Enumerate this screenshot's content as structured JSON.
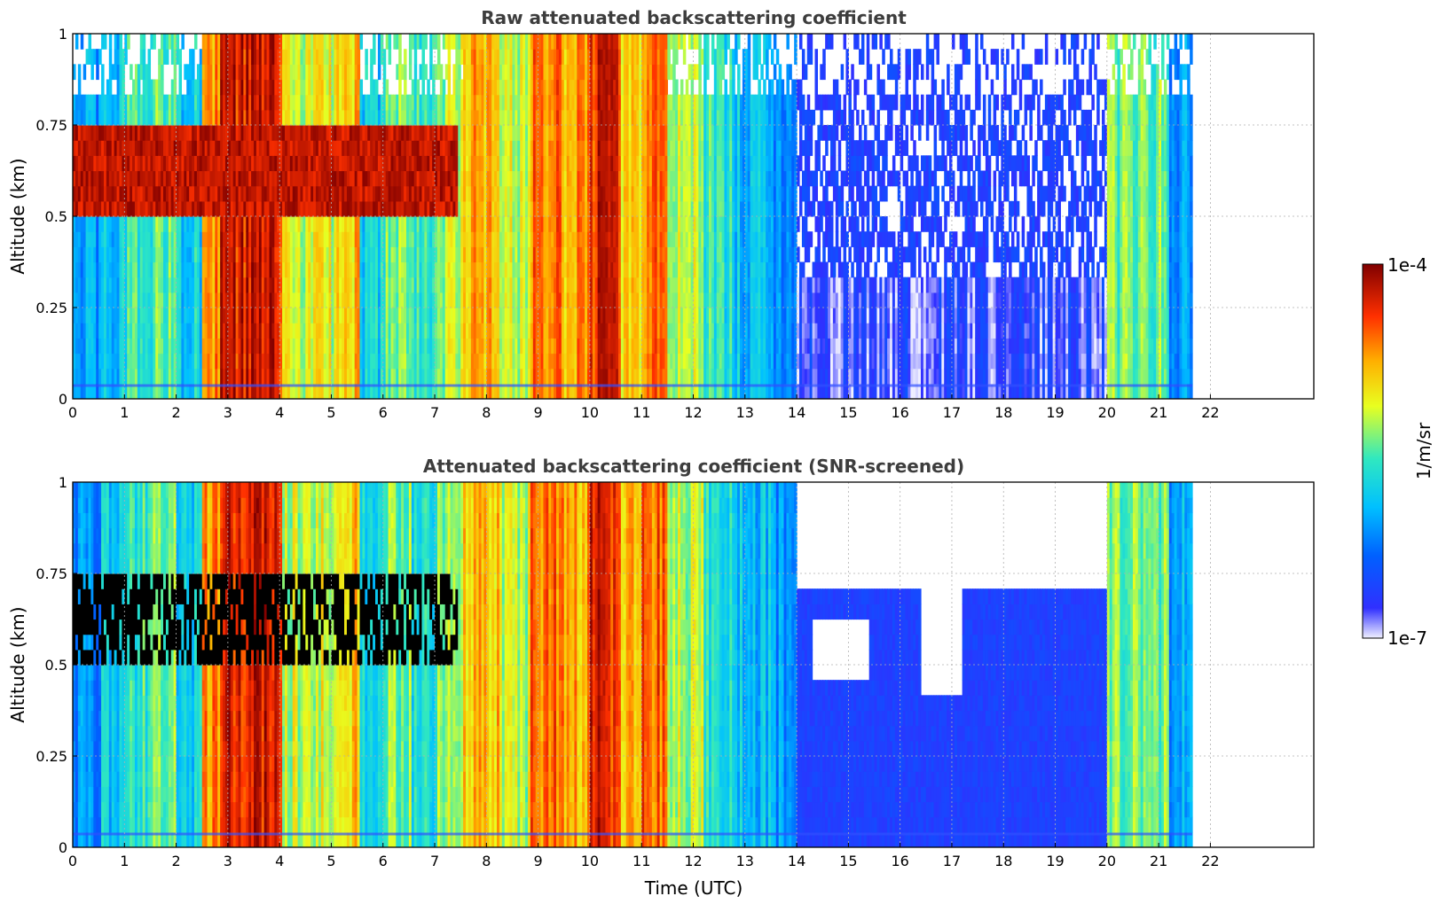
{
  "chart_data": [
    {
      "type": "heatmap",
      "title": "Raw attenuated backscattering coefficient",
      "ylabel": "Altitude (km)",
      "xlabel": "",
      "xlim": [
        0,
        24
      ],
      "ylim": [
        0,
        1
      ],
      "xticks": [
        "0",
        "1",
        "2",
        "3",
        "4",
        "5",
        "6",
        "7",
        "8",
        "9",
        "10",
        "11",
        "12",
        "13",
        "14",
        "15",
        "16",
        "17",
        "18",
        "19",
        "20",
        "21",
        "22"
      ],
      "yticks": [
        "0",
        "0.25",
        "0.5",
        "0.75",
        "1"
      ],
      "grid": true,
      "data_end_time": 21.65,
      "column_levels": [
        {
          "t0": 0.0,
          "t1": 0.5,
          "level": 0.3
        },
        {
          "t0": 0.5,
          "t1": 1.0,
          "level": 0.38
        },
        {
          "t0": 1.0,
          "t1": 1.5,
          "level": 0.46
        },
        {
          "t0": 1.5,
          "t1": 2.0,
          "level": 0.5
        },
        {
          "t0": 2.0,
          "t1": 2.45,
          "level": 0.4
        },
        {
          "t0": 2.45,
          "t1": 2.8,
          "level": 0.78
        },
        {
          "t0": 2.8,
          "t1": 4.0,
          "level": 0.9
        },
        {
          "t0": 4.0,
          "t1": 4.5,
          "level": 0.6
        },
        {
          "t0": 4.5,
          "t1": 5.0,
          "level": 0.62
        },
        {
          "t0": 5.0,
          "t1": 5.5,
          "level": 0.7
        },
        {
          "t0": 5.5,
          "t1": 6.0,
          "level": 0.4
        },
        {
          "t0": 6.0,
          "t1": 6.5,
          "level": 0.55
        },
        {
          "t0": 6.5,
          "t1": 7.0,
          "level": 0.45
        },
        {
          "t0": 7.0,
          "t1": 7.5,
          "level": 0.58
        },
        {
          "t0": 7.5,
          "t1": 8.2,
          "level": 0.72
        },
        {
          "t0": 8.2,
          "t1": 8.8,
          "level": 0.6
        },
        {
          "t0": 8.8,
          "t1": 9.5,
          "level": 0.8
        },
        {
          "t0": 9.5,
          "t1": 10.0,
          "level": 0.74
        },
        {
          "t0": 10.0,
          "t1": 10.6,
          "level": 0.88
        },
        {
          "t0": 10.6,
          "t1": 11.0,
          "level": 0.7
        },
        {
          "t0": 11.0,
          "t1": 11.5,
          "level": 0.82
        },
        {
          "t0": 11.5,
          "t1": 12.2,
          "level": 0.58
        },
        {
          "t0": 12.2,
          "t1": 12.8,
          "level": 0.45
        },
        {
          "t0": 12.8,
          "t1": 13.5,
          "level": 0.36
        },
        {
          "t0": 13.5,
          "t1": 14.0,
          "level": 0.3
        },
        {
          "t0": 14.0,
          "t1": 20.0,
          "level": 0.08
        },
        {
          "t0": 20.0,
          "t1": 21.2,
          "level": 0.52
        },
        {
          "t0": 21.2,
          "t1": 21.65,
          "level": 0.32
        }
      ],
      "cloud_layer": {
        "t0": 0.0,
        "t1": 7.4,
        "alt_bottom": 0.5,
        "alt_top": 0.75,
        "level": 0.99
      }
    },
    {
      "type": "heatmap",
      "title": "Attenuated backscattering coefficient (SNR-screened)",
      "ylabel": "Altitude (km)",
      "xlabel": "Time (UTC)",
      "xlim": [
        0,
        24
      ],
      "ylim": [
        0,
        1
      ],
      "xticks": [
        "0",
        "1",
        "2",
        "3",
        "4",
        "5",
        "6",
        "7",
        "8",
        "9",
        "10",
        "11",
        "12",
        "13",
        "14",
        "15",
        "16",
        "17",
        "18",
        "19",
        "20",
        "21",
        "22"
      ],
      "yticks": [
        "0",
        "0.25",
        "0.5",
        "0.75",
        "1"
      ],
      "grid": true,
      "data_end_time": 21.65,
      "screened_region": {
        "t0": 14.0,
        "t1": 20.0,
        "alt_top": 0.68
      },
      "cloud_layer": {
        "t0": 0.0,
        "t1": 7.4,
        "alt_bottom": 0.5,
        "alt_top": 0.75,
        "level": "black"
      }
    }
  ],
  "colorbar": {
    "label": "1/m/sr",
    "top_label": "1e-4",
    "bottom_label": "1e-7",
    "scale": "log",
    "range": [
      1e-07,
      0.0001
    ],
    "colors": [
      "#f0f0ff",
      "#2020ff",
      "#00b0ff",
      "#30e0d0",
      "#e0ff20",
      "#ffc000",
      "#ff4000",
      "#800000"
    ]
  }
}
